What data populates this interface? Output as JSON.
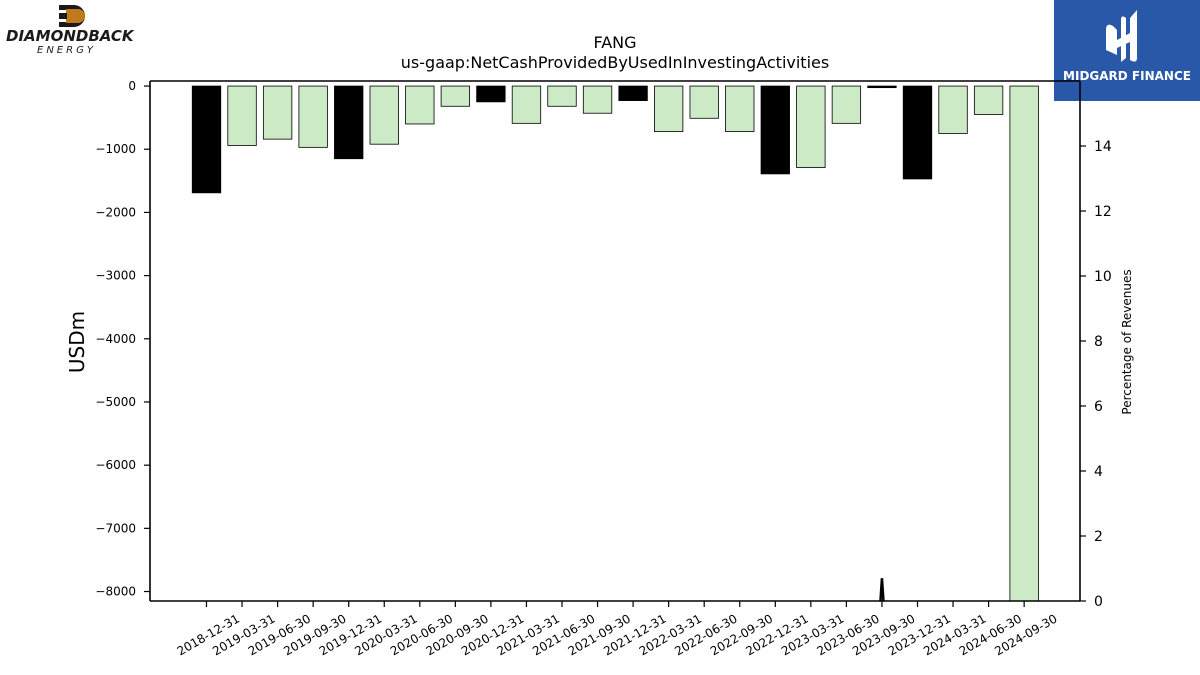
{
  "brand_left": {
    "name": "DIAMONDBACK",
    "sub": "ENERGY"
  },
  "brand_right": {
    "name": "MIDGARD FINANCE"
  },
  "colors": {
    "dark_bar": "#000000",
    "light_bar": "#cdeac6",
    "brand_blue": "#2a58a8",
    "mark_orange": "#c07a1c"
  },
  "chart_data": {
    "type": "bar",
    "title": "FANG",
    "subtitle": "us-gaap:NetCashProvidedByUsedInInvestingActivities",
    "ylabel": "USDm",
    "y2label": "Percentage of Revenues",
    "ylim": [
      -8150,
      80
    ],
    "y2lim": [
      0,
      16
    ],
    "yticks": [
      0,
      -1000,
      -2000,
      -3000,
      -4000,
      -5000,
      -6000,
      -7000,
      -8000
    ],
    "y2ticks": [
      0,
      2,
      4,
      6,
      8,
      10,
      12,
      14
    ],
    "categories": [
      "2018-12-31",
      "2019-03-31",
      "2019-06-30",
      "2019-09-30",
      "2019-12-31",
      "2020-03-31",
      "2020-06-30",
      "2020-09-30",
      "2020-12-31",
      "2021-03-31",
      "2021-06-30",
      "2021-09-30",
      "2021-12-31",
      "2022-03-31",
      "2022-06-30",
      "2022-09-30",
      "2022-12-31",
      "2023-03-31",
      "2023-06-30",
      "2023-09-30",
      "2023-12-31",
      "2024-03-31",
      "2024-06-30",
      "2024-09-30"
    ],
    "values": [
      -1690,
      -940,
      -840,
      -970,
      -1150,
      -920,
      -600,
      -320,
      -250,
      -590,
      -320,
      -430,
      -230,
      -720,
      -510,
      -720,
      -1390,
      -1290,
      -590,
      -25,
      -1470,
      -750,
      -450,
      -8190
    ],
    "bar_styles": [
      "dark",
      "light",
      "light",
      "light",
      "dark",
      "light",
      "light",
      "light",
      "dark",
      "light",
      "light",
      "light",
      "dark",
      "light",
      "light",
      "light",
      "dark",
      "light",
      "light",
      "dark",
      "dark",
      "light",
      "light",
      "light"
    ],
    "series2": {
      "name": "",
      "x_index": 19,
      "values_pct": [
        0,
        0.7,
        0
      ]
    }
  }
}
